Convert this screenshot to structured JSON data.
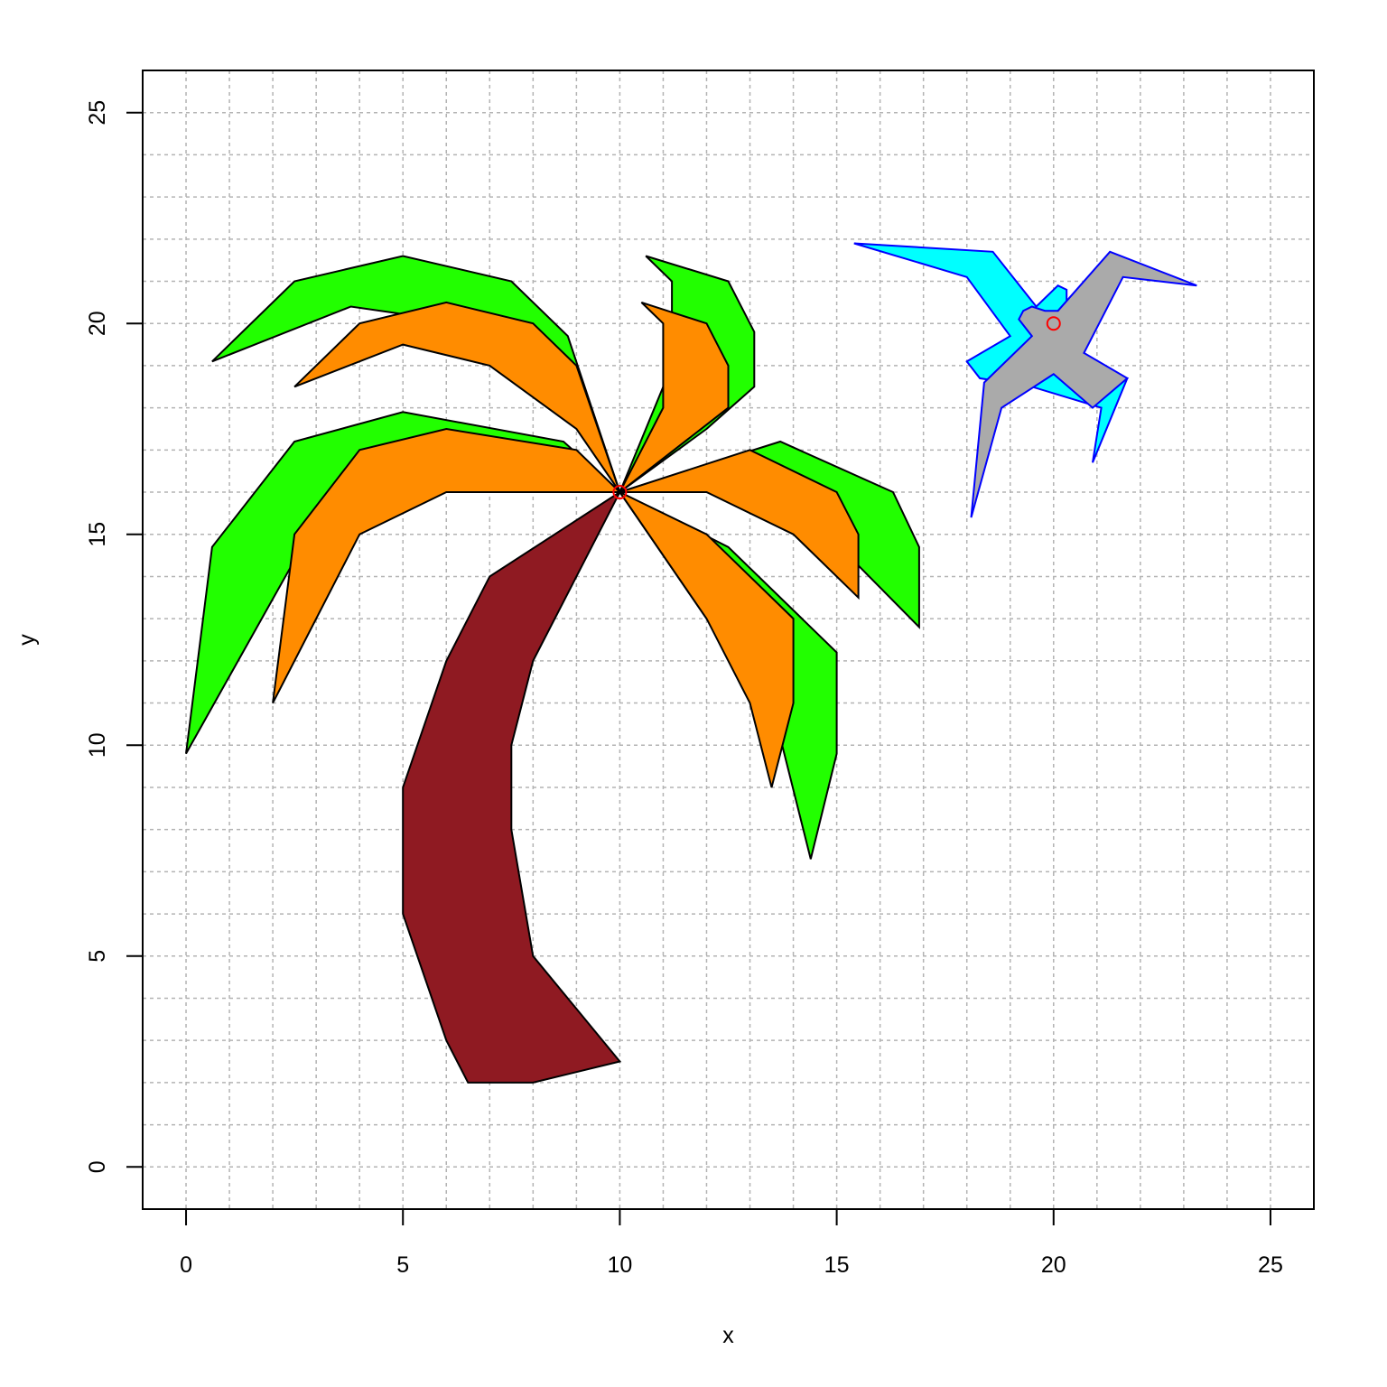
{
  "chart_data": {
    "type": "polygon",
    "xlabel": "x",
    "ylabel": "y",
    "xlim": [
      -1,
      26
    ],
    "ylim": [
      -1,
      26
    ],
    "xticks": [
      0,
      5,
      10,
      15,
      20,
      25
    ],
    "yticks": [
      0,
      5,
      10,
      15,
      20,
      25
    ],
    "grid": true,
    "grid_step": 1,
    "colors": {
      "trunk": "#8f1a22",
      "leaf_green": "#22ff00",
      "leaf_orange": "#ff8c00",
      "bird_wing": "#00ffff",
      "bird_body": "#aaaaaa",
      "bird_outline": "#0000ff",
      "marker": "#ff0000"
    },
    "polygons": [
      {
        "name": "trunk",
        "fill": "#8f1a22",
        "stroke": "#000000",
        "points": [
          [
            10,
            16
          ],
          [
            7,
            14
          ],
          [
            6,
            12
          ],
          [
            5,
            9
          ],
          [
            5,
            6
          ],
          [
            6,
            3
          ],
          [
            6.5,
            2
          ],
          [
            8,
            2
          ],
          [
            10,
            2.5
          ],
          [
            8,
            5
          ],
          [
            7.5,
            8
          ],
          [
            7.5,
            10
          ],
          [
            8,
            12
          ],
          [
            10,
            16
          ]
        ]
      },
      {
        "name": "green-leaf-upper-left",
        "fill": "#22ff00",
        "stroke": "#000000",
        "points": [
          [
            10,
            16
          ],
          [
            8.8,
            19.7
          ],
          [
            7.5,
            21
          ],
          [
            5,
            21.6
          ],
          [
            2.5,
            21
          ],
          [
            0.6,
            19.1
          ],
          [
            3.8,
            20.4
          ],
          [
            6.5,
            20
          ],
          [
            8.5,
            18.7
          ],
          [
            10,
            16
          ]
        ]
      },
      {
        "name": "orange-leaf-upper-left",
        "fill": "#ff8c00",
        "stroke": "#000000",
        "points": [
          [
            10,
            16
          ],
          [
            9,
            19
          ],
          [
            8,
            20
          ],
          [
            6,
            20.5
          ],
          [
            4,
            20
          ],
          [
            2.5,
            18.5
          ],
          [
            5,
            19.5
          ],
          [
            7,
            19
          ],
          [
            9,
            17.5
          ],
          [
            10,
            16
          ]
        ]
      },
      {
        "name": "green-leaf-left",
        "fill": "#22ff00",
        "stroke": "#000000",
        "points": [
          [
            10,
            16
          ],
          [
            8.7,
            17.2
          ],
          [
            5,
            17.9
          ],
          [
            2.5,
            17.2
          ],
          [
            0.6,
            14.7
          ],
          [
            0,
            9.8
          ],
          [
            3,
            15.3
          ],
          [
            5,
            17
          ],
          [
            7,
            17
          ],
          [
            10,
            16
          ]
        ]
      },
      {
        "name": "orange-leaf-left",
        "fill": "#ff8c00",
        "stroke": "#000000",
        "points": [
          [
            10,
            16
          ],
          [
            9,
            17
          ],
          [
            6,
            17.5
          ],
          [
            4,
            17
          ],
          [
            2.5,
            15
          ],
          [
            2,
            11
          ],
          [
            4,
            15
          ],
          [
            6,
            16
          ],
          [
            10,
            16
          ]
        ]
      },
      {
        "name": "green-leaf-top",
        "fill": "#22ff00",
        "stroke": "#000000",
        "points": [
          [
            10,
            16
          ],
          [
            11.2,
            19
          ],
          [
            11.2,
            21
          ],
          [
            10.6,
            21.6
          ],
          [
            12.5,
            21
          ],
          [
            13.1,
            19.8
          ],
          [
            13.1,
            18.5
          ],
          [
            12,
            17.5
          ],
          [
            10,
            16
          ]
        ]
      },
      {
        "name": "orange-leaf-top",
        "fill": "#ff8c00",
        "stroke": "#000000",
        "points": [
          [
            10,
            16
          ],
          [
            11,
            18
          ],
          [
            11,
            20
          ],
          [
            10.5,
            20.5
          ],
          [
            12,
            20
          ],
          [
            12.5,
            19
          ],
          [
            12.5,
            18
          ],
          [
            10,
            16
          ]
        ]
      },
      {
        "name": "green-leaf-right",
        "fill": "#22ff00",
        "stroke": "#000000",
        "points": [
          [
            10,
            16
          ],
          [
            13.7,
            17.2
          ],
          [
            16.3,
            16
          ],
          [
            16.9,
            14.7
          ],
          [
            16.9,
            12.8
          ],
          [
            14.5,
            15.3
          ],
          [
            12,
            16
          ],
          [
            10,
            16
          ]
        ]
      },
      {
        "name": "orange-leaf-right",
        "fill": "#ff8c00",
        "stroke": "#000000",
        "points": [
          [
            10,
            16
          ],
          [
            13,
            17
          ],
          [
            15,
            16
          ],
          [
            15.5,
            15
          ],
          [
            15.5,
            13.5
          ],
          [
            14,
            15
          ],
          [
            12,
            16
          ],
          [
            10,
            16
          ]
        ]
      },
      {
        "name": "green-leaf-lower-right",
        "fill": "#22ff00",
        "stroke": "#000000",
        "points": [
          [
            10,
            16
          ],
          [
            12.5,
            14.7
          ],
          [
            15,
            12.2
          ],
          [
            15,
            9.8
          ],
          [
            14.4,
            7.3
          ],
          [
            13.5,
            11
          ],
          [
            12,
            13
          ],
          [
            10,
            16
          ]
        ]
      },
      {
        "name": "orange-leaf-lower-right",
        "fill": "#ff8c00",
        "stroke": "#000000",
        "points": [
          [
            10,
            16
          ],
          [
            12,
            15
          ],
          [
            14,
            13
          ],
          [
            14,
            11
          ],
          [
            13.5,
            9
          ],
          [
            13,
            11
          ],
          [
            12,
            13
          ],
          [
            10,
            16
          ]
        ]
      },
      {
        "name": "bird-wing",
        "fill": "#00ffff",
        "stroke": "#0000ff",
        "points": [
          [
            15.4,
            21.9
          ],
          [
            18.6,
            21.7
          ],
          [
            19.6,
            20.4
          ],
          [
            20.1,
            20.9
          ],
          [
            20.3,
            20.8
          ],
          [
            20.3,
            20.4
          ],
          [
            20,
            20
          ],
          [
            19.7,
            19.6
          ],
          [
            19.5,
            19.3
          ],
          [
            21.7,
            18.7
          ],
          [
            20.9,
            16.7
          ],
          [
            21.1,
            18.0
          ],
          [
            19.5,
            18.5
          ],
          [
            18.3,
            18.7
          ],
          [
            18,
            19.1
          ],
          [
            19,
            19.7
          ],
          [
            18,
            21.1
          ],
          [
            15.4,
            21.9
          ]
        ]
      },
      {
        "name": "bird-body",
        "fill": "#aaaaaa",
        "stroke": "#0000ff",
        "points": [
          [
            19.3,
            20.3
          ],
          [
            19.2,
            20.1
          ],
          [
            19.5,
            19.7
          ],
          [
            18.4,
            18.6
          ],
          [
            18.1,
            15.4
          ],
          [
            18.8,
            18
          ],
          [
            20,
            18.8
          ],
          [
            20.9,
            18
          ],
          [
            21.7,
            18.7
          ],
          [
            20.7,
            19.3
          ],
          [
            21.6,
            21.1
          ],
          [
            23.3,
            20.9
          ],
          [
            21.3,
            21.7
          ],
          [
            20.1,
            20.3
          ],
          [
            19.8,
            20.3
          ],
          [
            19.5,
            20.4
          ],
          [
            19.3,
            20.3
          ]
        ]
      }
    ],
    "markers": [
      {
        "name": "palm-center-marker",
        "x": 10,
        "y": 16,
        "color": "#ff0000"
      },
      {
        "name": "bird-center-marker",
        "x": 20,
        "y": 20,
        "color": "#ff0000"
      }
    ]
  }
}
